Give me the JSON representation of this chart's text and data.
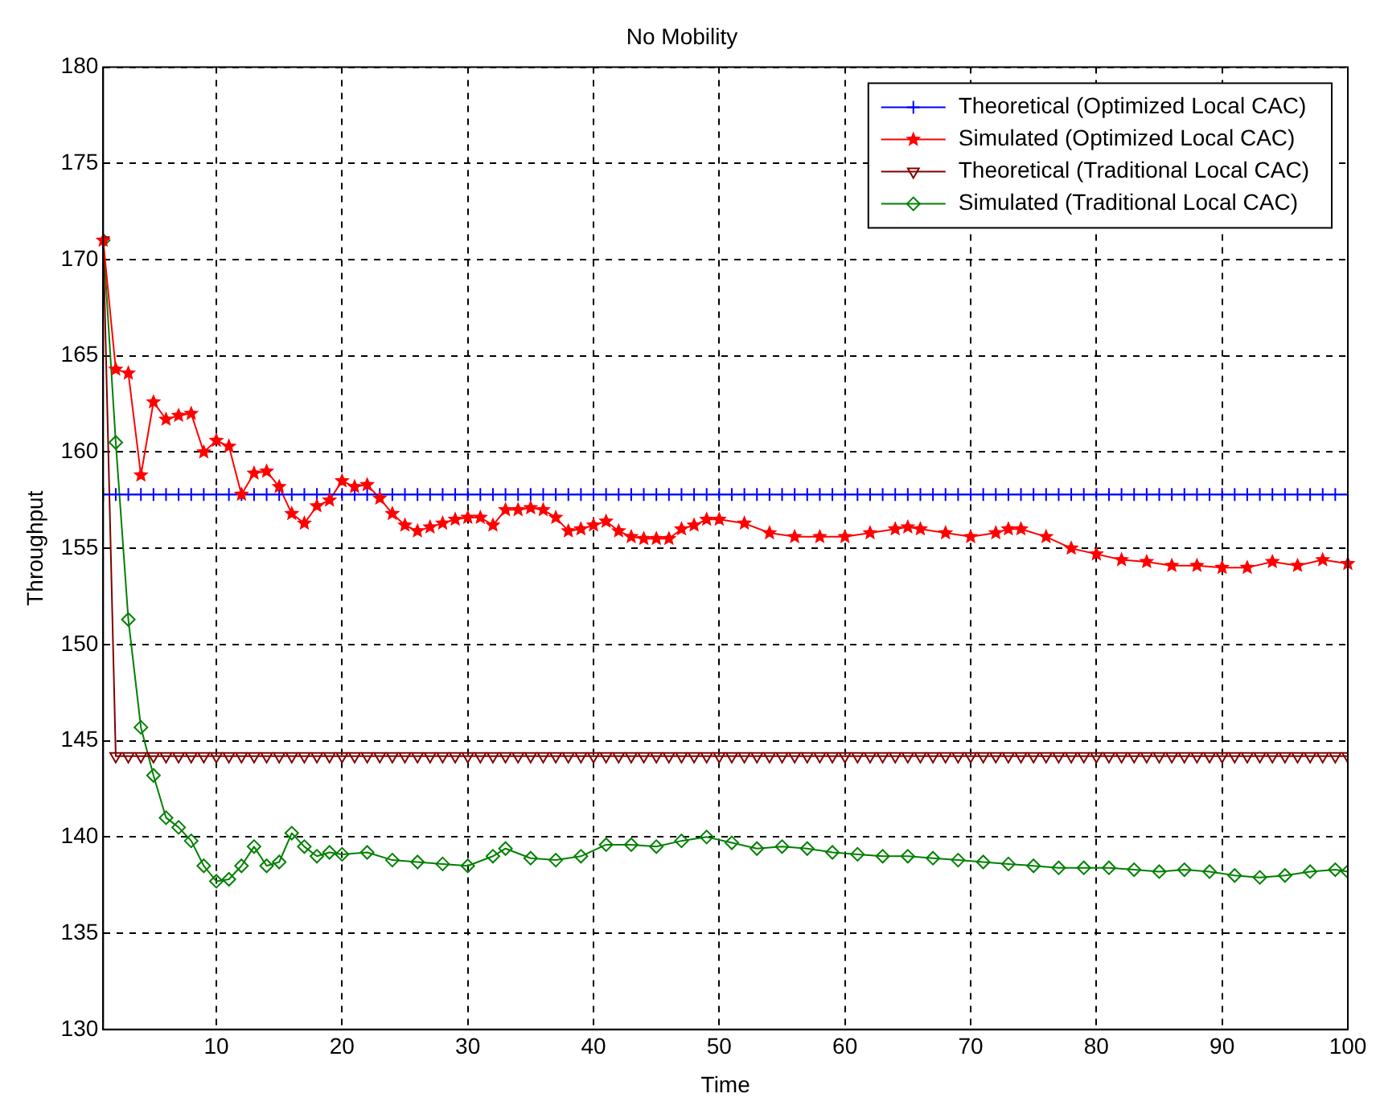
{
  "chart_data": {
    "type": "line",
    "title": "No Mobility",
    "xlabel": "Time",
    "ylabel": "Throughput",
    "xlim": [
      1,
      100
    ],
    "xticks": [
      10,
      20,
      30,
      40,
      50,
      60,
      70,
      80,
      90,
      100
    ],
    "ylim": [
      130,
      180
    ],
    "yticks": [
      130,
      135,
      140,
      145,
      150,
      155,
      160,
      165,
      170,
      175,
      180
    ],
    "grid": true,
    "legend": "top right",
    "line_style": "solid",
    "series": [
      {
        "name": "Theoretical (Optimized Local CAC)",
        "color": "#0000ff",
        "marker": "cross",
        "x": [
          1,
          2,
          3,
          4,
          5,
          6,
          7,
          8,
          9,
          10,
          11,
          12,
          13,
          14,
          15,
          16,
          17,
          18,
          19,
          20,
          21,
          22,
          23,
          24,
          25,
          26,
          27,
          28,
          29,
          30,
          31,
          32,
          33,
          34,
          35,
          36,
          37,
          38,
          39,
          40,
          41,
          42,
          43,
          44,
          45,
          46,
          47,
          48,
          49,
          50,
          51,
          52,
          53,
          54,
          55,
          56,
          57,
          58,
          59,
          60,
          61,
          62,
          63,
          64,
          65,
          66,
          67,
          68,
          69,
          70,
          71,
          72,
          73,
          74,
          75,
          76,
          77,
          78,
          79,
          80,
          81,
          82,
          83,
          84,
          85,
          86,
          87,
          88,
          89,
          90,
          91,
          92,
          93,
          94,
          95,
          96,
          97,
          98,
          99,
          100
        ],
        "values": [
          157.8,
          157.8,
          157.8,
          157.8,
          157.8,
          157.8,
          157.8,
          157.8,
          157.8,
          157.8,
          157.8,
          157.8,
          157.8,
          157.8,
          157.8,
          157.8,
          157.8,
          157.8,
          157.8,
          157.8,
          157.8,
          157.8,
          157.8,
          157.8,
          157.8,
          157.8,
          157.8,
          157.8,
          157.8,
          157.8,
          157.8,
          157.8,
          157.8,
          157.8,
          157.8,
          157.8,
          157.8,
          157.8,
          157.8,
          157.8,
          157.8,
          157.8,
          157.8,
          157.8,
          157.8,
          157.8,
          157.8,
          157.8,
          157.8,
          157.8,
          157.8,
          157.8,
          157.8,
          157.8,
          157.8,
          157.8,
          157.8,
          157.8,
          157.8,
          157.8,
          157.8,
          157.8,
          157.8,
          157.8,
          157.8,
          157.8,
          157.8,
          157.8,
          157.8,
          157.8,
          157.8,
          157.8,
          157.8,
          157.8,
          157.8,
          157.8,
          157.8,
          157.8,
          157.8,
          157.8,
          157.8,
          157.8,
          157.8,
          157.8,
          157.8,
          157.8,
          157.8,
          157.8,
          157.8,
          157.8,
          157.8,
          157.8,
          157.8,
          157.8,
          157.8,
          157.8,
          157.8,
          157.8,
          157.8,
          157.8
        ]
      },
      {
        "name": "Simulated (Optimized Local CAC)",
        "color": "#ff0000",
        "marker": "star",
        "x": [
          1,
          2,
          3,
          4,
          5,
          6,
          7,
          8,
          9,
          10,
          11,
          12,
          13,
          14,
          15,
          16,
          17,
          18,
          19,
          20,
          21,
          22,
          23,
          24,
          25,
          26,
          27,
          28,
          29,
          30,
          31,
          32,
          33,
          34,
          35,
          36,
          37,
          38,
          39,
          40,
          41,
          42,
          43,
          44,
          45,
          46,
          47,
          48,
          49,
          50,
          52,
          54,
          56,
          58,
          60,
          62,
          64,
          65,
          66,
          68,
          70,
          72,
          73,
          74,
          76,
          78,
          80,
          82,
          84,
          86,
          88,
          90,
          92,
          94,
          96,
          98,
          100
        ],
        "values": [
          171,
          164.3,
          164.1,
          158.8,
          162.6,
          161.7,
          161.9,
          162,
          160,
          160.6,
          160.3,
          157.8,
          158.9,
          159,
          158.2,
          156.8,
          156.3,
          157.2,
          157.5,
          158.5,
          158.2,
          158.3,
          157.6,
          156.8,
          156.2,
          155.9,
          156.1,
          156.3,
          156.5,
          156.6,
          156.6,
          156.2,
          157,
          157,
          157.1,
          157,
          156.6,
          155.9,
          156,
          156.2,
          156.4,
          155.9,
          155.6,
          155.5,
          155.5,
          155.5,
          156,
          156.2,
          156.5,
          156.5,
          156.3,
          155.8,
          155.6,
          155.6,
          155.6,
          155.8,
          156,
          156.1,
          156,
          155.8,
          155.6,
          155.8,
          156,
          156,
          155.6,
          155,
          154.7,
          154.4,
          154.3,
          154.1,
          154.1,
          154,
          154,
          154.3,
          154.1,
          154.4,
          154.2
        ]
      },
      {
        "name": "Theoretical (Traditional Local CAC)",
        "color": "#800000",
        "marker": "triangle",
        "x": [
          1,
          2,
          3,
          4,
          5,
          6,
          7,
          8,
          9,
          10,
          11,
          12,
          13,
          14,
          15,
          16,
          17,
          18,
          19,
          20,
          21,
          22,
          23,
          24,
          25,
          26,
          27,
          28,
          29,
          30,
          31,
          32,
          33,
          34,
          35,
          36,
          37,
          38,
          39,
          40,
          41,
          42,
          43,
          44,
          45,
          46,
          47,
          48,
          49,
          50,
          51,
          52,
          53,
          54,
          55,
          56,
          57,
          58,
          59,
          60,
          61,
          62,
          63,
          64,
          65,
          66,
          67,
          68,
          69,
          70,
          71,
          72,
          73,
          74,
          75,
          76,
          77,
          78,
          79,
          80,
          81,
          82,
          83,
          84,
          85,
          86,
          87,
          88,
          89,
          90,
          91,
          92,
          93,
          94,
          95,
          96,
          97,
          98,
          99,
          100
        ],
        "values": [
          171,
          144.2,
          144.2,
          144.2,
          144.2,
          144.2,
          144.2,
          144.2,
          144.2,
          144.2,
          144.2,
          144.2,
          144.2,
          144.2,
          144.2,
          144.2,
          144.2,
          144.2,
          144.2,
          144.2,
          144.2,
          144.2,
          144.2,
          144.2,
          144.2,
          144.2,
          144.2,
          144.2,
          144.2,
          144.2,
          144.2,
          144.2,
          144.2,
          144.2,
          144.2,
          144.2,
          144.2,
          144.2,
          144.2,
          144.2,
          144.2,
          144.2,
          144.2,
          144.2,
          144.2,
          144.2,
          144.2,
          144.2,
          144.2,
          144.2,
          144.2,
          144.2,
          144.2,
          144.2,
          144.2,
          144.2,
          144.2,
          144.2,
          144.2,
          144.2,
          144.2,
          144.2,
          144.2,
          144.2,
          144.2,
          144.2,
          144.2,
          144.2,
          144.2,
          144.2,
          144.2,
          144.2,
          144.2,
          144.2,
          144.2,
          144.2,
          144.2,
          144.2,
          144.2,
          144.2,
          144.2,
          144.2,
          144.2,
          144.2,
          144.2,
          144.2,
          144.2,
          144.2,
          144.2,
          144.2,
          144.2,
          144.2,
          144.2,
          144.2,
          144.2,
          144.2,
          144.2,
          144.2,
          144.2,
          144.2
        ]
      },
      {
        "name": "Simulated (Traditional Local CAC)",
        "color": "#008000",
        "marker": "diamond",
        "x": [
          1,
          2,
          3,
          4,
          5,
          6,
          7,
          8,
          9,
          10,
          11,
          12,
          13,
          14,
          15,
          16,
          17,
          18,
          19,
          20,
          22,
          24,
          26,
          28,
          30,
          32,
          33,
          35,
          37,
          39,
          41,
          43,
          45,
          47,
          49,
          51,
          53,
          55,
          57,
          59,
          61,
          63,
          65,
          67,
          69,
          71,
          73,
          75,
          77,
          79,
          81,
          83,
          85,
          87,
          89,
          91,
          93,
          95,
          97,
          99,
          100
        ],
        "values": [
          171,
          160.5,
          151.3,
          145.7,
          143.2,
          141,
          140.5,
          139.8,
          138.5,
          137.7,
          137.8,
          138.5,
          139.5,
          138.5,
          138.7,
          140.2,
          139.5,
          139,
          139.2,
          139.1,
          139.2,
          138.8,
          138.7,
          138.6,
          138.5,
          139,
          139.4,
          138.9,
          138.8,
          139,
          139.6,
          139.6,
          139.5,
          139.8,
          140,
          139.7,
          139.4,
          139.5,
          139.4,
          139.2,
          139.1,
          139,
          139,
          138.9,
          138.8,
          138.7,
          138.6,
          138.5,
          138.4,
          138.4,
          138.4,
          138.3,
          138.2,
          138.3,
          138.2,
          138,
          137.9,
          138,
          138.2,
          138.3,
          138.2
        ]
      }
    ]
  }
}
